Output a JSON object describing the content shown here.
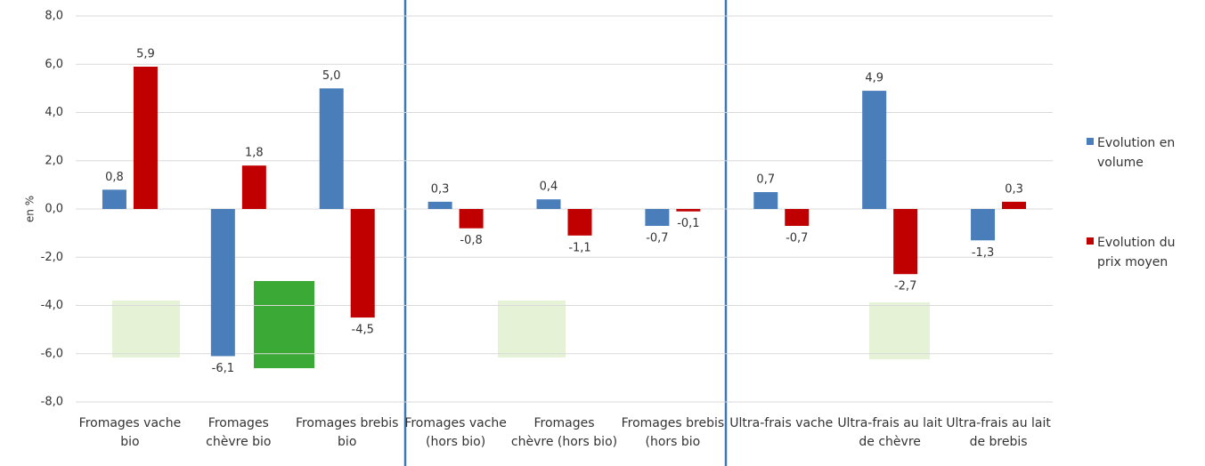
{
  "chart_data": {
    "type": "bar",
    "y_label": "en %",
    "categories": [
      "Fromages vache bio",
      "Fromages chèvre bio",
      "Fromages brebis bio",
      "Fromages vache (hors bio)",
      "Fromages chèvre (hors bio)",
      "Fromages brebis (hors bio",
      "Ultra-frais vache",
      "Ultra-frais au lait de chèvre",
      "Ultra-frais au lait de brebis"
    ],
    "series": [
      {
        "name": "Evolution en volume",
        "color": "#4a7ebb",
        "values": [
          0.8,
          -6.1,
          5.0,
          0.3,
          0.4,
          -0.7,
          0.7,
          4.9,
          -1.3
        ],
        "value_labels": [
          "0,8",
          "-6,1",
          "5,0",
          "0,3",
          "0,4",
          "-0,7",
          "0,7",
          "4,9",
          "-1,3"
        ]
      },
      {
        "name": "Evolution du prix moyen",
        "color": "#c00000",
        "values": [
          5.9,
          1.8,
          -4.5,
          -0.8,
          -1.1,
          -0.1,
          -0.7,
          -2.7,
          0.3
        ],
        "value_labels": [
          "5,9",
          "1,8",
          "-4,5",
          "-0,8",
          "-1,1",
          "-0,1",
          "-0,7",
          "-2,7",
          "0,3"
        ]
      }
    ],
    "ylim": [
      -8,
      8
    ],
    "yticks": [
      {
        "value": -8,
        "label": "-8,0"
      },
      {
        "value": -6,
        "label": "-6,0"
      },
      {
        "value": -4,
        "label": "-4,0"
      },
      {
        "value": -2,
        "label": "-2,0"
      },
      {
        "value": 0,
        "label": "0,0"
      },
      {
        "value": 2,
        "label": "2,0"
      },
      {
        "value": 4,
        "label": "4,0"
      },
      {
        "value": 6,
        "label": "6,0"
      },
      {
        "value": 8,
        "label": "8,0"
      }
    ],
    "grid": true,
    "legend": "right"
  }
}
